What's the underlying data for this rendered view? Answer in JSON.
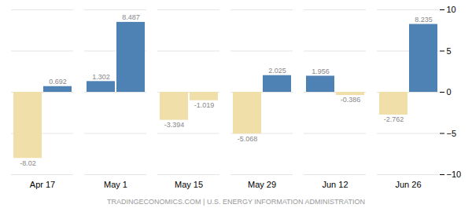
{
  "chart_data": {
    "type": "bar",
    "categories": [
      "Apr 17",
      "May 1",
      "May 15",
      "May 29",
      "Jun 12",
      "Jun 26"
    ],
    "series": [
      {
        "values": [
          -8.02,
          1.302,
          -3.394,
          -5.068,
          1.956,
          -2.762
        ],
        "colors": [
          "#f0dfa8",
          "#4e82b4",
          "#f0dfa8",
          "#f0dfa8",
          "#4e82b4",
          "#f0dfa8"
        ]
      },
      {
        "values": [
          0.692,
          8.487,
          -1.019,
          2.025,
          -0.386,
          8.235
        ],
        "colors": [
          "#4e82b4",
          "#4e82b4",
          "#f0dfa8",
          "#4e82b4",
          "#f0dfa8",
          "#4e82b4"
        ]
      }
    ],
    "ylim": [
      -10,
      10
    ],
    "yticks": [
      -10,
      -5,
      0,
      5,
      10
    ],
    "grid": true,
    "data_labels": true,
    "caption": "TRADINGECONOMICS.COM | U.S. ENERGY INFORMATION ADMINISTRATION"
  }
}
